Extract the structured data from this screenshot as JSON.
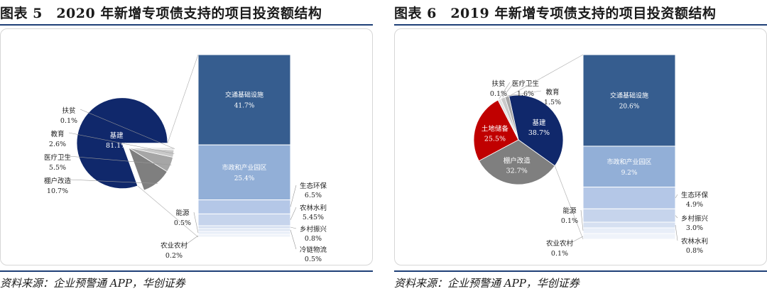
{
  "figures": [
    {
      "title": "图表 5　2020 年新增专项债支持的项目投资额结构",
      "source": "资料来源：企业预警通 APP，华创证券"
    },
    {
      "title": "图表 6　2019 年新增专项债支持的项目投资额结构",
      "source": "资料来源：企业预警通 APP，华创证券"
    }
  ],
  "chart_data": [
    {
      "type": "pie",
      "pie": {
        "slices": [
          {
            "name": "基建",
            "value": 81.1,
            "label": "81.1%",
            "color": "#10286b"
          },
          {
            "name": "棚户改造",
            "value": 10.7,
            "label": "10.7%",
            "color": "#7f7f7f"
          },
          {
            "name": "医疗卫生",
            "value": 5.5,
            "label": "5.5%",
            "color": "#a6a6a6"
          },
          {
            "name": "教育",
            "value": 2.6,
            "label": "2.6%",
            "color": "#c9c9c9"
          },
          {
            "name": "扶贫",
            "value": 0.1,
            "label": "0.1%",
            "color": "#e2e2e2"
          }
        ]
      },
      "breakdown": {
        "of": "基建",
        "segments": [
          {
            "name": "交通基础设施",
            "value": 41.7,
            "label": "41.7%",
            "color": "#365d8f",
            "text_color": "#ffffff"
          },
          {
            "name": "市政和产业园区",
            "value": 25.4,
            "label": "25.4%",
            "color": "#92afd7",
            "text_color": "#ffffff"
          },
          {
            "name": "生态环保",
            "value": 6.5,
            "label": "6.5%",
            "color": "#b4c7e7",
            "text_color": "#222222"
          },
          {
            "name": "农林水利",
            "value": 5.45,
            "label": "5.45%",
            "color": "#c6d4ec",
            "text_color": "#222222"
          },
          {
            "name": "乡村振兴",
            "value": 0.8,
            "label": "0.8%",
            "color": "#d6e0f1",
            "text_color": "#222222"
          },
          {
            "name": "冷链物流",
            "value": 0.5,
            "label": "0.5%",
            "color": "#dfe7f4",
            "text_color": "#222222"
          },
          {
            "name": "能源",
            "value": 0.5,
            "label": "0.5%",
            "color": "#e8eef8",
            "text_color": "#222222"
          },
          {
            "name": "农业农村",
            "value": 0.2,
            "label": "0.2%",
            "color": "#eff3fa",
            "text_color": "#222222"
          }
        ]
      }
    },
    {
      "type": "pie",
      "pie": {
        "slices": [
          {
            "name": "基建",
            "value": 38.7,
            "label": "38.7%",
            "color": "#10286b"
          },
          {
            "name": "棚户改造",
            "value": 32.7,
            "label": "32.7%",
            "color": "#7f7f7f"
          },
          {
            "name": "土地储备",
            "value": 25.5,
            "label": "25.5%",
            "color": "#c00000"
          },
          {
            "name": "扶贫",
            "value": 0.1,
            "label": "0.1%",
            "color": "#e2e2e2"
          },
          {
            "name": "医疗卫生",
            "value": 1.6,
            "label": "1.6%",
            "color": "#c9c9c9"
          },
          {
            "name": "教育",
            "value": 1.5,
            "label": "1.5%",
            "color": "#a6a6a6"
          }
        ]
      },
      "breakdown": {
        "of": "基建",
        "segments": [
          {
            "name": "交通基础设施",
            "value": 20.6,
            "label": "20.6%",
            "color": "#365d8f",
            "text_color": "#ffffff"
          },
          {
            "name": "市政和产业园区",
            "value": 9.2,
            "label": "9.2%",
            "color": "#92afd7",
            "text_color": "#ffffff"
          },
          {
            "name": "生态环保",
            "value": 4.9,
            "label": "4.9%",
            "color": "#b4c7e7",
            "text_color": "#222222"
          },
          {
            "name": "乡村振兴",
            "value": 3.0,
            "label": "3.0%",
            "color": "#c6d4ec",
            "text_color": "#222222"
          },
          {
            "name": "农林水利",
            "value": 0.8,
            "label": "0.8%",
            "color": "#d6e0f1",
            "text_color": "#222222"
          },
          {
            "name": "能源",
            "value": 0.1,
            "label": "0.1%",
            "color": "#e8eef8",
            "text_color": "#222222"
          },
          {
            "name": "农业农村",
            "value": 0.1,
            "label": "0.1%",
            "color": "#eff3fa",
            "text_color": "#222222"
          }
        ]
      }
    }
  ]
}
